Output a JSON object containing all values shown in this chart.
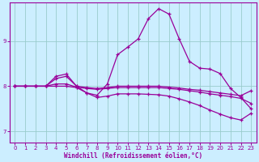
{
  "xlabel": "Windchill (Refroidissement éolien,°C)",
  "bg_color": "#cceeff",
  "grid_color": "#99cccc",
  "line_color": "#990099",
  "xlim": [
    -0.5,
    23.5
  ],
  "ylim": [
    6.75,
    9.85
  ],
  "yticks": [
    7,
    8,
    9
  ],
  "xticks": [
    0,
    1,
    2,
    3,
    4,
    5,
    6,
    7,
    8,
    9,
    10,
    11,
    12,
    13,
    14,
    15,
    16,
    17,
    18,
    19,
    20,
    21,
    22,
    23
  ],
  "series1_x": [
    0,
    1,
    2,
    3,
    4,
    5,
    6,
    7,
    8,
    9,
    10,
    11,
    12,
    13,
    14,
    15,
    16,
    17,
    18,
    19,
    20,
    21,
    22,
    23
  ],
  "series1_y": [
    8.0,
    8.0,
    8.0,
    8.0,
    8.17,
    8.22,
    8.0,
    7.97,
    7.95,
    7.97,
    8.0,
    8.0,
    8.0,
    8.0,
    8.0,
    7.98,
    7.96,
    7.93,
    7.91,
    7.88,
    7.85,
    7.82,
    7.79,
    7.9
  ],
  "series2_x": [
    0,
    1,
    2,
    3,
    4,
    5,
    6,
    7,
    8,
    9,
    10,
    11,
    12,
    13,
    14,
    15,
    16,
    17,
    18,
    19,
    20,
    21,
    22,
    23
  ],
  "series2_y": [
    8.0,
    8.0,
    8.0,
    8.0,
    8.22,
    8.27,
    8.0,
    7.85,
    7.8,
    8.05,
    8.7,
    8.87,
    9.05,
    9.5,
    9.72,
    9.6,
    9.05,
    8.55,
    8.4,
    8.38,
    8.28,
    7.95,
    7.75,
    7.5
  ],
  "series3_x": [
    0,
    1,
    2,
    3,
    4,
    5,
    6,
    7,
    8,
    9,
    10,
    11,
    12,
    13,
    14,
    15,
    16,
    17,
    18,
    19,
    20,
    21,
    22,
    23
  ],
  "series3_y": [
    8.0,
    8.0,
    8.0,
    8.0,
    8.05,
    8.05,
    7.98,
    7.95,
    7.93,
    7.95,
    7.97,
    7.97,
    7.97,
    7.97,
    7.97,
    7.95,
    7.93,
    7.9,
    7.87,
    7.83,
    7.8,
    7.77,
    7.73,
    7.62
  ],
  "series4_x": [
    0,
    1,
    2,
    3,
    4,
    5,
    6,
    7,
    8,
    9,
    10,
    11,
    12,
    13,
    14,
    15,
    16,
    17,
    18,
    19,
    20,
    21,
    22,
    23
  ],
  "series4_y": [
    8.0,
    8.0,
    8.0,
    8.0,
    8.0,
    8.0,
    7.97,
    7.85,
    7.75,
    7.78,
    7.83,
    7.83,
    7.83,
    7.82,
    7.81,
    7.78,
    7.72,
    7.65,
    7.57,
    7.47,
    7.38,
    7.3,
    7.25,
    7.4
  ]
}
